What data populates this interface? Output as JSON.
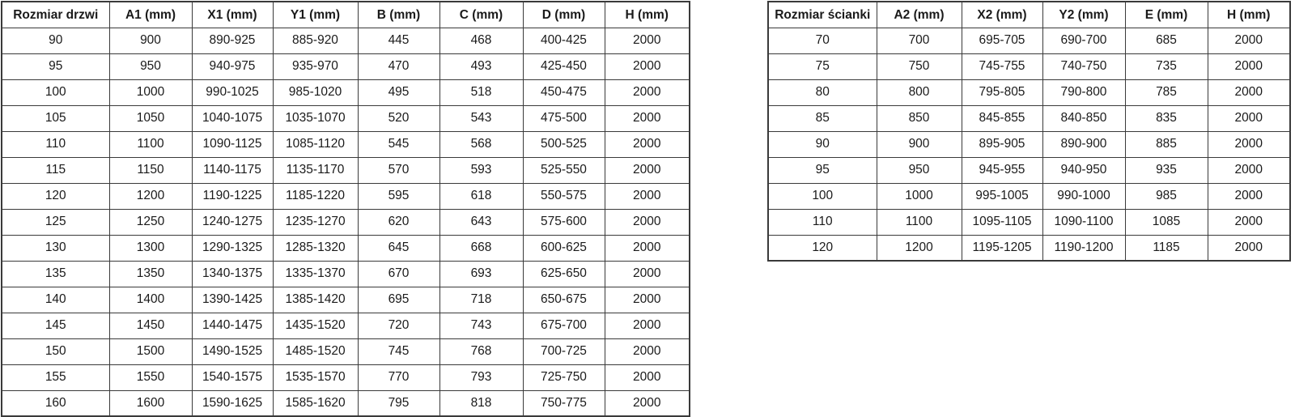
{
  "colors": {
    "border": "#3a3a3a",
    "text": "#1a1a1a",
    "background": "#ffffff"
  },
  "tables": [
    {
      "name": "door-size-table",
      "headers": [
        "Rozmiar drzwi",
        "A1 (mm)",
        "X1 (mm)",
        "Y1 (mm)",
        "B (mm)",
        "C (mm)",
        "D (mm)",
        "H (mm)"
      ],
      "rows": [
        [
          "90",
          "900",
          "890-925",
          "885-920",
          "445",
          "468",
          "400-425",
          "2000"
        ],
        [
          "95",
          "950",
          "940-975",
          "935-970",
          "470",
          "493",
          "425-450",
          "2000"
        ],
        [
          "100",
          "1000",
          "990-1025",
          "985-1020",
          "495",
          "518",
          "450-475",
          "2000"
        ],
        [
          "105",
          "1050",
          "1040-1075",
          "1035-1070",
          "520",
          "543",
          "475-500",
          "2000"
        ],
        [
          "110",
          "1100",
          "1090-1125",
          "1085-1120",
          "545",
          "568",
          "500-525",
          "2000"
        ],
        [
          "115",
          "1150",
          "1140-1175",
          "1135-1170",
          "570",
          "593",
          "525-550",
          "2000"
        ],
        [
          "120",
          "1200",
          "1190-1225",
          "1185-1220",
          "595",
          "618",
          "550-575",
          "2000"
        ],
        [
          "125",
          "1250",
          "1240-1275",
          "1235-1270",
          "620",
          "643",
          "575-600",
          "2000"
        ],
        [
          "130",
          "1300",
          "1290-1325",
          "1285-1320",
          "645",
          "668",
          "600-625",
          "2000"
        ],
        [
          "135",
          "1350",
          "1340-1375",
          "1335-1370",
          "670",
          "693",
          "625-650",
          "2000"
        ],
        [
          "140",
          "1400",
          "1390-1425",
          "1385-1420",
          "695",
          "718",
          "650-675",
          "2000"
        ],
        [
          "145",
          "1450",
          "1440-1475",
          "1435-1520",
          "720",
          "743",
          "675-700",
          "2000"
        ],
        [
          "150",
          "1500",
          "1490-1525",
          "1485-1520",
          "745",
          "768",
          "700-725",
          "2000"
        ],
        [
          "155",
          "1550",
          "1540-1575",
          "1535-1570",
          "770",
          "793",
          "725-750",
          "2000"
        ],
        [
          "160",
          "1600",
          "1590-1625",
          "1585-1620",
          "795",
          "818",
          "750-775",
          "2000"
        ]
      ]
    },
    {
      "name": "wall-size-table",
      "headers": [
        "Rozmiar ścianki",
        "A2 (mm)",
        "X2 (mm)",
        "Y2 (mm)",
        "E (mm)",
        "H (mm)"
      ],
      "rows": [
        [
          "70",
          "700",
          "695-705",
          "690-700",
          "685",
          "2000"
        ],
        [
          "75",
          "750",
          "745-755",
          "740-750",
          "735",
          "2000"
        ],
        [
          "80",
          "800",
          "795-805",
          "790-800",
          "785",
          "2000"
        ],
        [
          "85",
          "850",
          "845-855",
          "840-850",
          "835",
          "2000"
        ],
        [
          "90",
          "900",
          "895-905",
          "890-900",
          "885",
          "2000"
        ],
        [
          "95",
          "950",
          "945-955",
          "940-950",
          "935",
          "2000"
        ],
        [
          "100",
          "1000",
          "995-1005",
          "990-1000",
          "985",
          "2000"
        ],
        [
          "110",
          "1100",
          "1095-1105",
          "1090-1100",
          "1085",
          "2000"
        ],
        [
          "120",
          "1200",
          "1195-1205",
          "1190-1200",
          "1185",
          "2000"
        ]
      ]
    }
  ]
}
